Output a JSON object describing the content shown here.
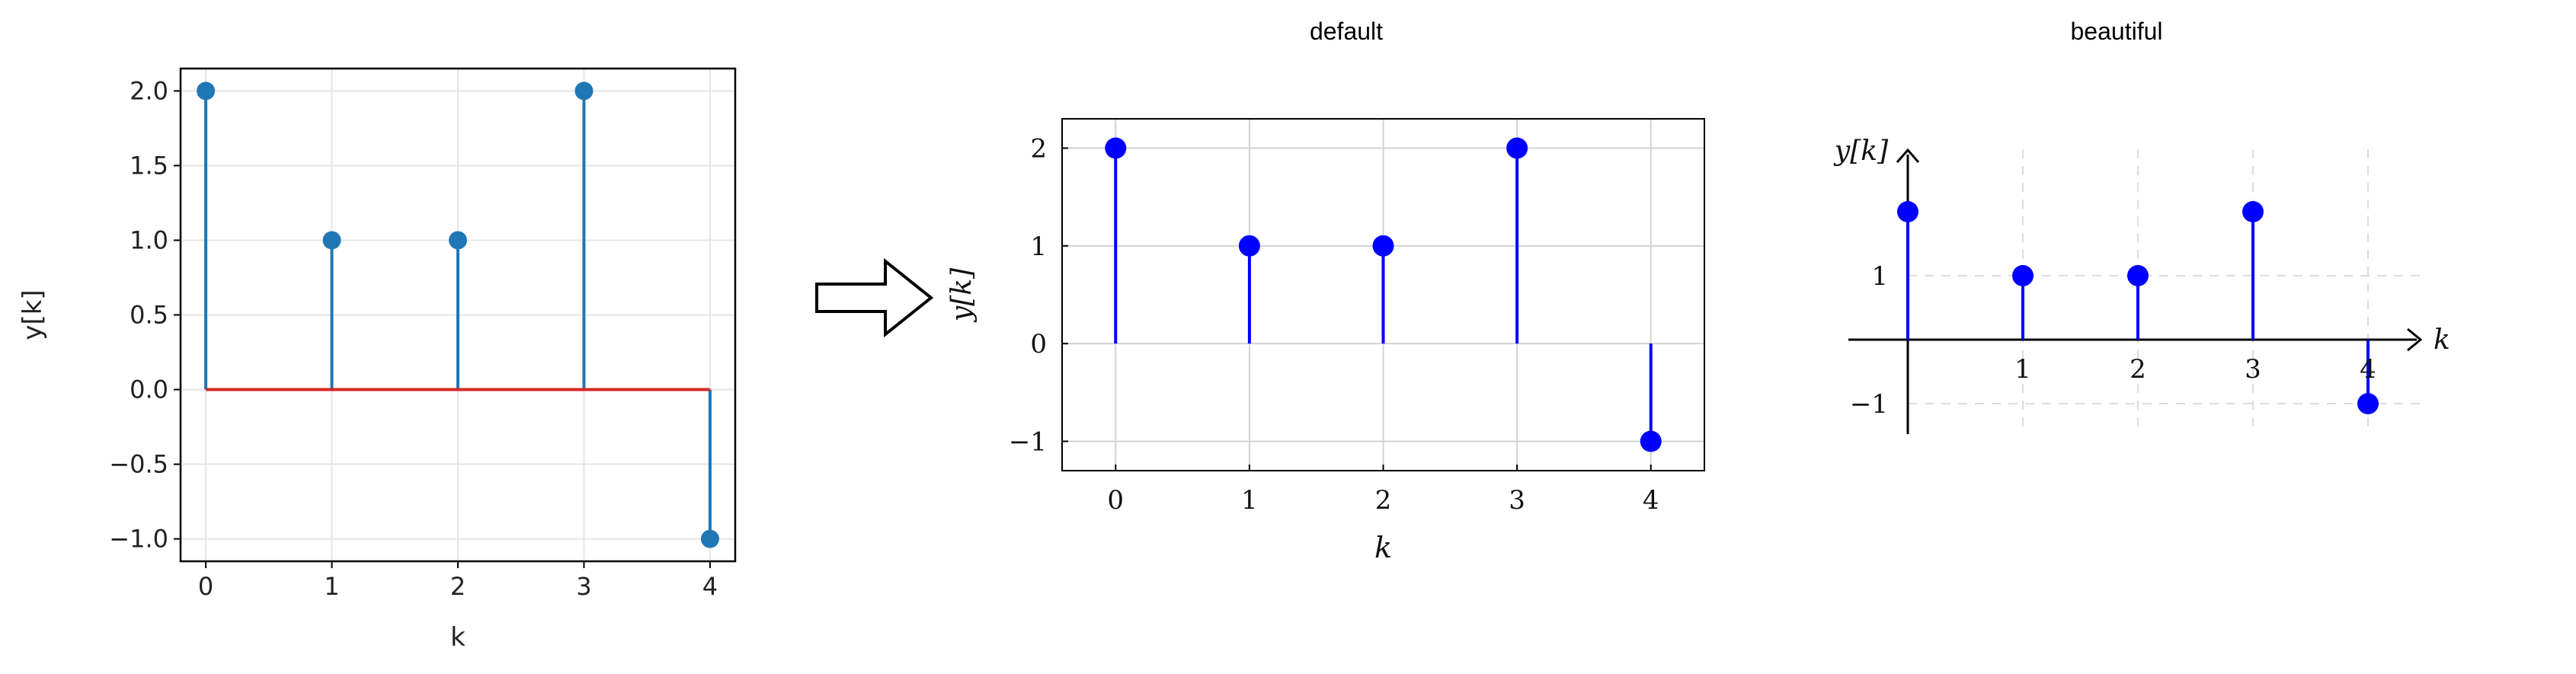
{
  "titles": {
    "default": "default",
    "beautiful": "beautiful"
  },
  "chart_data": [
    {
      "type": "stem",
      "style": "matplotlib",
      "x": [
        0,
        1,
        2,
        3,
        4
      ],
      "y": [
        2,
        1,
        1,
        2,
        -1
      ],
      "xlabel": "k",
      "ylabel": "y[k]",
      "xlim": [
        -0.2,
        4.2
      ],
      "ylim": [
        -1.15,
        2.15
      ],
      "xticks": [
        0,
        1,
        2,
        3,
        4
      ],
      "xtick_labels": [
        "0",
        "1",
        "2",
        "3",
        "4"
      ],
      "yticks": [
        -1.0,
        -0.5,
        0.0,
        0.5,
        1.0,
        1.5,
        2.0
      ],
      "ytick_labels": [
        "−1.0",
        "−0.5",
        "0.0",
        "0.5",
        "1.0",
        "1.5",
        "2.0"
      ],
      "grid": true,
      "colors": {
        "stem": "#1f77b4",
        "baseline": "#d62728"
      }
    },
    {
      "type": "stem",
      "style": "pgfplots-default",
      "title": "default",
      "x": [
        0,
        1,
        2,
        3,
        4
      ],
      "y": [
        2,
        1,
        1,
        2,
        -1
      ],
      "xlabel": "k",
      "ylabel": "y[k]",
      "xlim": [
        -0.4,
        4.4
      ],
      "ylim": [
        -1.3,
        2.3
      ],
      "xticks": [
        0,
        1,
        2,
        3,
        4
      ],
      "xtick_labels": [
        "0",
        "1",
        "2",
        "3",
        "4"
      ],
      "yticks": [
        -1,
        0,
        1,
        2
      ],
      "ytick_labels": [
        "−1",
        "0",
        "1",
        "2"
      ],
      "grid": true,
      "colors": {
        "stem": "#0000ff"
      }
    },
    {
      "type": "stem",
      "style": "pgfplots-beautiful",
      "title": "beautiful",
      "x": [
        0,
        1,
        2,
        3,
        4
      ],
      "y": [
        2,
        1,
        1,
        2,
        -1
      ],
      "xlabel": "k",
      "ylabel": "y[k]",
      "xticks": [
        1,
        2,
        3,
        4
      ],
      "xtick_labels": [
        "1",
        "2",
        "3",
        "4"
      ],
      "yticks": [
        -1,
        1
      ],
      "ytick_labels": [
        "−1",
        "1"
      ],
      "grid": "dashed",
      "colors": {
        "stem": "#0000ff"
      }
    }
  ]
}
